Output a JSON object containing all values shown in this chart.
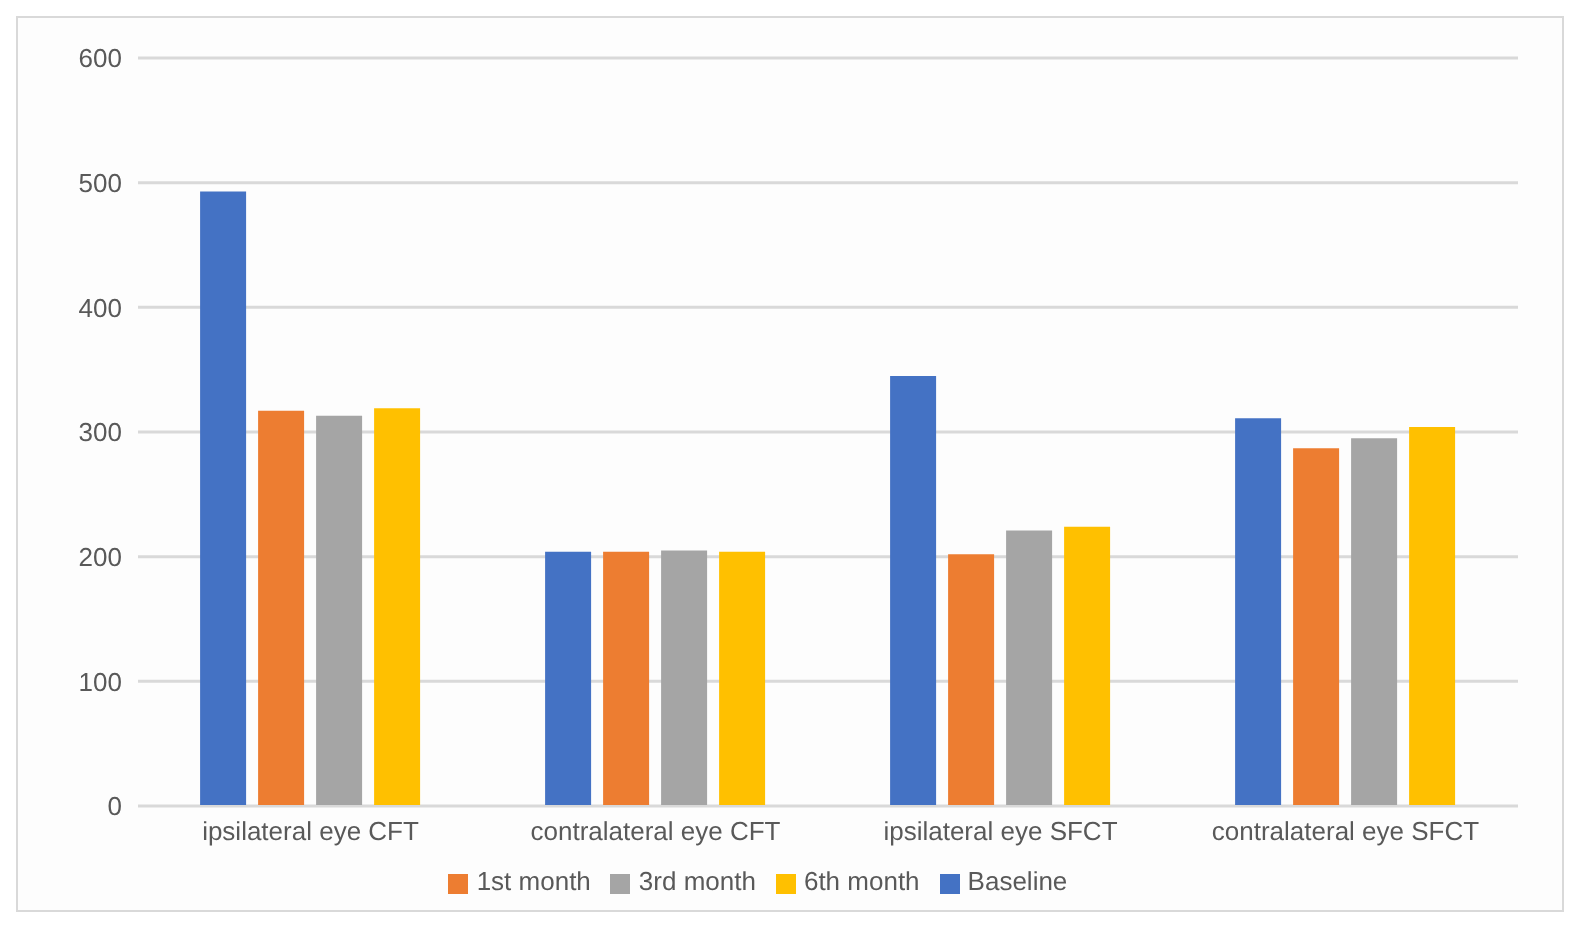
{
  "chart_data": {
    "type": "bar",
    "categories": [
      "ipsilateral eye CFT",
      "contralateral eye CFT",
      "ipsilateral eye SFCT",
      "contralateral eye SFCT"
    ],
    "series": [
      {
        "name": "Baseline",
        "color": "#4472c4",
        "values": [
          493,
          204,
          345,
          311
        ]
      },
      {
        "name": "1st month",
        "color": "#ed7d31",
        "values": [
          317,
          204,
          202,
          287
        ]
      },
      {
        "name": "3rd month",
        "color": "#a5a5a5",
        "values": [
          313,
          205,
          221,
          295
        ]
      },
      {
        "name": "6th month",
        "color": "#ffc000",
        "values": [
          319,
          204,
          224,
          304
        ]
      }
    ],
    "ylim": [
      0,
      600
    ],
    "yticks": [
      0,
      100,
      200,
      300,
      400,
      500,
      600
    ],
    "grid": "y",
    "legend": "bottom"
  }
}
